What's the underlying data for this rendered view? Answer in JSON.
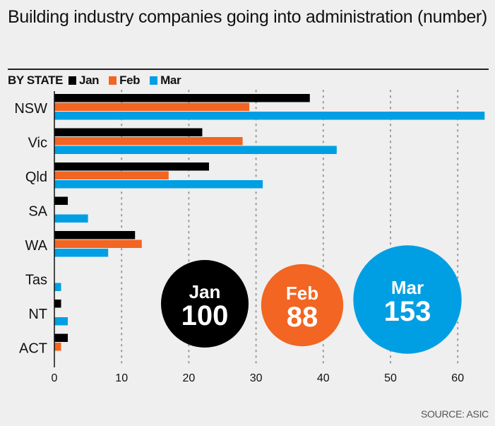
{
  "chart_data": {
    "type": "bar",
    "orientation": "horizontal",
    "title": "Building industry companies going into administration (number)",
    "subtitle": "BY STATE",
    "xlabel": "",
    "ylabel": "",
    "xlim": [
      0,
      65
    ],
    "xticks": [
      0,
      10,
      20,
      30,
      40,
      50,
      60
    ],
    "grid": "vertical dotted",
    "legend_position": "top-left",
    "categories": [
      "NSW",
      "Vic",
      "Qld",
      "SA",
      "WA",
      "Tas",
      "NT",
      "ACT"
    ],
    "series": [
      {
        "name": "Jan",
        "color": "#000000",
        "values": [
          38,
          22,
          23,
          2,
          12,
          0,
          1,
          2
        ]
      },
      {
        "name": "Feb",
        "color": "#f26522",
        "values": [
          29,
          28,
          17,
          0,
          13,
          0,
          0,
          1
        ]
      },
      {
        "name": "Mar",
        "color": "#009fe3",
        "values": [
          64,
          42,
          31,
          5,
          8,
          1,
          2,
          0
        ]
      }
    ],
    "totals": [
      {
        "month": "Jan",
        "total": "100",
        "color": "#000000"
      },
      {
        "month": "Feb",
        "total": "88",
        "color": "#f26522"
      },
      {
        "month": "Mar",
        "total": "153",
        "color": "#009fe3"
      }
    ],
    "source": "SOURCE: ASIC"
  }
}
